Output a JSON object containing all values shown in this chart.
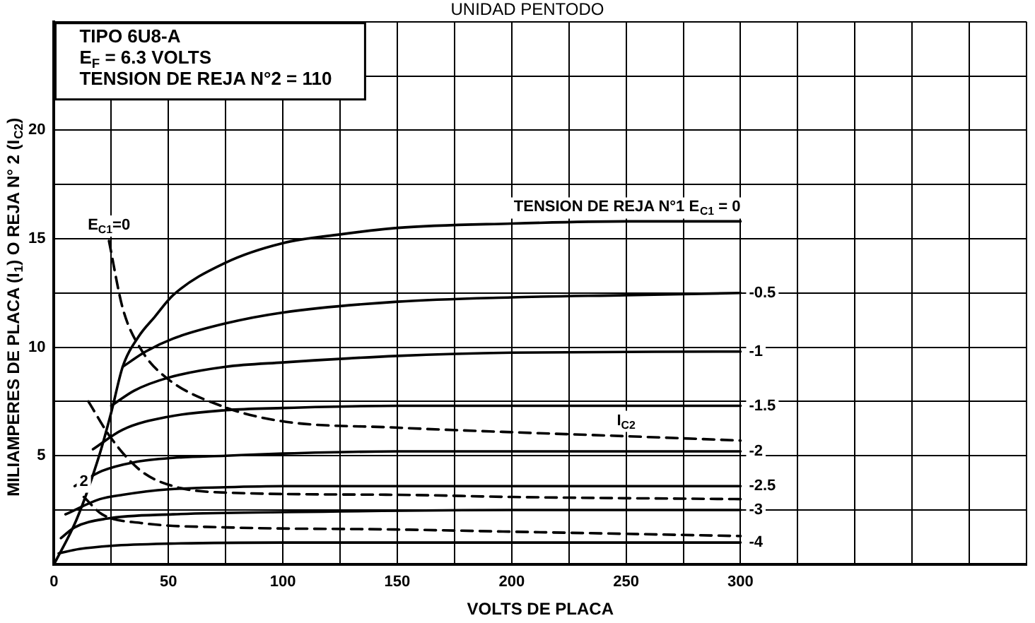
{
  "chart_data": {
    "type": "line",
    "title": "UNIDAD PENTODO",
    "xlabel": "VOLTS DE PLACA",
    "ylabel": "MILIAMPERES DE PLACA (I$_{1}$) O REJA N° 2 (I$_{C2}$)",
    "annotations": [
      "TIPO 6U8-A",
      "E$_{F}$ = 6.3 VOLTS",
      "TENSION DE REJA N°2 = 110",
      {
        "text": "I$_{C2}$",
        "x": 250,
        "y": 5.9
      },
      {
        "text": "E$_{C1}$=0",
        "x": 24,
        "y": 14.9
      },
      {
        "text": "2",
        "x": 13,
        "y": 3.1
      }
    ],
    "series": [
      {
        "name": "TENSION DE REJA N°1 E$_{C1}$ = 0",
        "color": "#000000",
        "x": [
          0,
          10,
          20,
          25,
          30,
          37,
          44,
          52,
          75,
          100,
          125,
          150,
          200,
          250,
          300
        ],
        "values": [
          0,
          2.1,
          5.1,
          7,
          9.1,
          10.5,
          11.4,
          12.4,
          13.9,
          14.8,
          15.2,
          15.5,
          15.7,
          15.8,
          15.8
        ]
      },
      {
        "name": "-0.5",
        "color": "#000000",
        "x": [
          30,
          40,
          52,
          75,
          100,
          150,
          200,
          250,
          300
        ],
        "values": [
          9.1,
          9.8,
          10.4,
          11.1,
          11.6,
          12.1,
          12.3,
          12.4,
          12.5
        ]
      },
      {
        "name": "-1",
        "color": "#000000",
        "x": [
          25,
          35,
          50,
          75,
          100,
          150,
          200,
          300
        ],
        "values": [
          7.3,
          8,
          8.6,
          9.1,
          9.3,
          9.6,
          9.75,
          9.8
        ]
      },
      {
        "name": "-1.5",
        "color": "#000000",
        "x": [
          17,
          30,
          50,
          75,
          100,
          150,
          300
        ],
        "values": [
          5.3,
          6.2,
          6.8,
          7.1,
          7.2,
          7.3,
          7.3
        ]
      },
      {
        "name": "-2",
        "color": "#000000",
        "x": [
          9,
          21,
          35,
          52,
          75,
          100,
          150,
          300
        ],
        "values": [
          3.6,
          4.3,
          4.7,
          4.9,
          5,
          5.1,
          5.2,
          5.2
        ]
      },
      {
        "name": "-2.5",
        "color": "#000000",
        "x": [
          5,
          20,
          30,
          50,
          75,
          100,
          300
        ],
        "values": [
          2.3,
          3,
          3.2,
          3.45,
          3.55,
          3.6,
          3.6
        ]
      },
      {
        "name": "-3",
        "color": "#000000",
        "x": [
          3,
          9,
          23,
          52,
          100,
          200,
          300
        ],
        "values": [
          1.2,
          1.7,
          2.1,
          2.3,
          2.4,
          2.5,
          2.5
        ]
      },
      {
        "name": "-4",
        "color": "#000000",
        "x": [
          2,
          11,
          25,
          50,
          100,
          300
        ],
        "values": [
          0.5,
          0.7,
          0.85,
          0.95,
          1,
          1
        ]
      },
      {
        "color": "#000000",
        "line_style": "dashed",
        "x": [
          24,
          30,
          38,
          49,
          73,
          99,
          149,
          196,
          250,
          300
        ],
        "values": [
          14.9,
          11.8,
          9.9,
          8.6,
          7.3,
          6.6,
          6.3,
          6.1,
          5.9,
          5.7
        ]
      },
      {
        "color": "#000000",
        "line_style": "dashed",
        "x": [
          15,
          25,
          38,
          52,
          75,
          150,
          200,
          300
        ],
        "values": [
          7.5,
          5.8,
          4.3,
          3.6,
          3.3,
          3.2,
          3.1,
          3
        ]
      },
      {
        "color": "#000000",
        "line_style": "dashed",
        "x": [
          13,
          21,
          38,
          75,
          150,
          200,
          300
        ],
        "values": [
          3.1,
          2.3,
          1.9,
          1.7,
          1.6,
          1.5,
          1.3
        ]
      }
    ],
    "xlim": [
      0,
      425
    ],
    "xticks": [
      0,
      {
        "value": 25,
        "label": null
      },
      50,
      {
        "value": 75,
        "label": null
      },
      100,
      {
        "value": 125,
        "label": null
      },
      150,
      {
        "value": 175,
        "label": null
      },
      200,
      {
        "value": 225,
        "label": null
      },
      250,
      {
        "value": 275,
        "label": null
      },
      300,
      {
        "value": 325,
        "label": null
      },
      {
        "value": 350,
        "label": null
      },
      {
        "value": 375,
        "label": null
      },
      {
        "value": 400,
        "label": null
      },
      {
        "value": 425,
        "label": null
      }
    ],
    "ylim": [
      0,
      25
    ],
    "yticks": [
      {
        "value": 0,
        "label": null
      },
      {
        "value": 2.5,
        "label": null
      },
      5,
      {
        "value": 7.5,
        "label": null
      },
      10,
      {
        "value": 12.5,
        "label": null
      },
      15,
      {
        "value": 17.5,
        "label": null
      },
      20,
      {
        "value": 22.5,
        "label": null
      },
      {
        "value": 25,
        "label": null
      }
    ],
    "grid": true,
    "marker": "none",
    "line_style": "solid"
  }
}
